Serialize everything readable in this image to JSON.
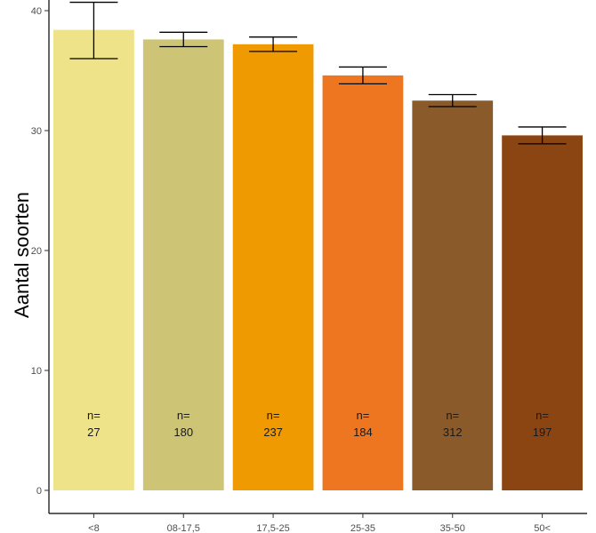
{
  "chart_data": {
    "type": "bar",
    "title": "",
    "xlabel": "",
    "ylabel": "Aantal soorten",
    "ylim": [
      0,
      40
    ],
    "yticks": [
      0,
      10,
      20,
      30,
      40
    ],
    "grid": false,
    "categories": [
      "<8",
      "08-17,5",
      "17,5-25",
      "25-35",
      "35-50",
      "50<"
    ],
    "values": [
      38.4,
      37.6,
      37.2,
      34.6,
      32.5,
      29.6
    ],
    "error_low": [
      36.0,
      37.0,
      36.6,
      33.9,
      32.0,
      28.9
    ],
    "error_high": [
      40.7,
      38.2,
      37.8,
      35.3,
      33.0,
      30.3
    ],
    "n_prefix": "n=",
    "n": [
      "27",
      "180",
      "237",
      "184",
      "312",
      "197"
    ],
    "colors": [
      "#EEE388",
      "#CDC475",
      "#EE9A00",
      "#EE7621",
      "#8B5A2B",
      "#8B4513"
    ]
  }
}
